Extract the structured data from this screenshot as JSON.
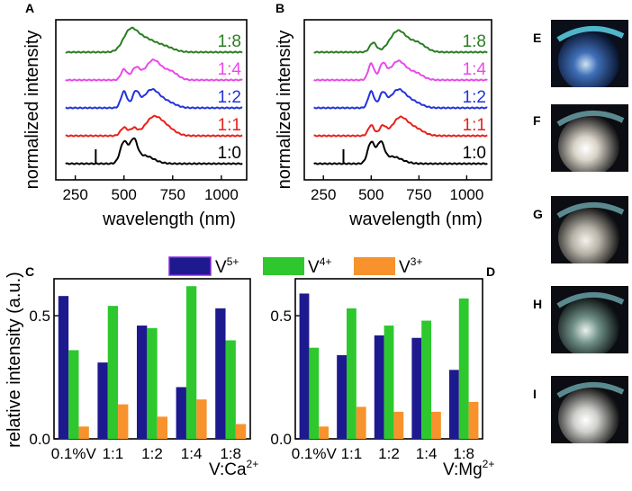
{
  "panels": {
    "a": "A",
    "b": "B",
    "c": "C",
    "d": "D",
    "e": "E",
    "f": "F",
    "g": "G",
    "h": "H",
    "i": "I"
  },
  "top_ylabel": "normalized intensity",
  "bottom_ylabel": "relative intensity (a.u.)",
  "colors": {
    "1:0": "#000000",
    "1:1": "#e8201c",
    "1:2": "#2333d9",
    "1:4": "#e84ae8",
    "1:8": "#2a7d22",
    "V5": "#1d1a8f",
    "V4": "#2ec82e",
    "V3": "#f7922c"
  },
  "legend": {
    "v5": {
      "base": "V",
      "sup": "5+"
    },
    "v4": {
      "base": "V",
      "sup": "4+"
    },
    "v3": {
      "base": "V",
      "sup": "3+"
    }
  },
  "xlabel_c": {
    "base": "V:Ca",
    "sup": "2+"
  },
  "xlabel_d": {
    "base": "V:Mg",
    "sup": "2+"
  },
  "chart_data": [
    {
      "id": "A",
      "type": "line",
      "xlabel": "wavelength (nm)",
      "ylabel": "normalized intensity",
      "xlim": [
        150,
        1130
      ],
      "xticks": [
        250,
        500,
        750,
        1000
      ],
      "series": [
        {
          "name": "1:0",
          "offset": 0,
          "peaks": [
            [
              500,
              0.9,
              28
            ],
            [
              550,
              0.85,
              25
            ],
            [
              600,
              0.35,
              70
            ]
          ],
          "spike": 355
        },
        {
          "name": "1:1",
          "offset": 1,
          "peaks": [
            [
              500,
              0.35,
              25
            ],
            [
              550,
              0.3,
              25
            ],
            [
              650,
              0.75,
              60
            ],
            [
              720,
              0.3,
              60
            ]
          ],
          "spike": null
        },
        {
          "name": "1:2",
          "offset": 2,
          "peaks": [
            [
              500,
              0.7,
              22
            ],
            [
              560,
              0.65,
              25
            ],
            [
              640,
              0.75,
              55
            ],
            [
              720,
              0.25,
              60
            ]
          ],
          "spike": null
        },
        {
          "name": "1:4",
          "offset": 3,
          "peaks": [
            [
              500,
              0.45,
              22
            ],
            [
              560,
              0.5,
              30
            ],
            [
              650,
              0.85,
              55
            ],
            [
              740,
              0.35,
              50
            ]
          ],
          "spike": null
        },
        {
          "name": "1:8",
          "offset": 4,
          "peaks": [
            [
              530,
              0.8,
              50
            ],
            [
              600,
              0.55,
              70
            ],
            [
              700,
              0.25,
              70
            ]
          ],
          "spike": null
        }
      ]
    },
    {
      "id": "B",
      "type": "line",
      "xlabel": "wavelength (nm)",
      "ylabel": "normalized intensity",
      "xlim": [
        150,
        1130
      ],
      "xticks": [
        250,
        500,
        750,
        1000
      ],
      "series": [
        {
          "name": "1:0",
          "offset": 0,
          "peaks": [
            [
              500,
              0.9,
              26
            ],
            [
              550,
              0.8,
              25
            ],
            [
              610,
              0.3,
              70
            ]
          ],
          "spike": 355
        },
        {
          "name": "1:1",
          "offset": 1,
          "peaks": [
            [
              500,
              0.45,
              22
            ],
            [
              560,
              0.4,
              25
            ],
            [
              650,
              0.75,
              55
            ],
            [
              730,
              0.3,
              60
            ]
          ],
          "spike": null
        },
        {
          "name": "1:2",
          "offset": 2,
          "peaks": [
            [
              500,
              0.7,
              22
            ],
            [
              560,
              0.6,
              25
            ],
            [
              640,
              0.75,
              55
            ],
            [
              720,
              0.25,
              60
            ]
          ],
          "spike": null
        },
        {
          "name": "1:4",
          "offset": 3,
          "peaks": [
            [
              500,
              0.7,
              22
            ],
            [
              560,
              0.65,
              25
            ],
            [
              640,
              0.8,
              55
            ],
            [
              730,
              0.3,
              55
            ]
          ],
          "spike": null
        },
        {
          "name": "1:8",
          "offset": 4,
          "peaks": [
            [
              510,
              0.4,
              25
            ],
            [
              640,
              0.9,
              60
            ],
            [
              740,
              0.4,
              60
            ]
          ],
          "spike": null
        }
      ]
    },
    {
      "id": "C",
      "type": "bar",
      "xlabel": "V:Ca2+",
      "ylabel": "relative intensity (a.u.)",
      "ylim": [
        0,
        0.65
      ],
      "yticks": [
        0.0,
        0.5
      ],
      "ytick_labels": [
        "0.0",
        "0.5"
      ],
      "categories": [
        "0.1%V",
        "1:1",
        "1:2",
        "1:4",
        "1:8"
      ],
      "series": [
        {
          "name": "V5+",
          "values": [
            0.58,
            0.31,
            0.46,
            0.21,
            0.53
          ]
        },
        {
          "name": "V4+",
          "values": [
            0.36,
            0.54,
            0.45,
            0.62,
            0.4
          ]
        },
        {
          "name": "V3+",
          "values": [
            0.05,
            0.14,
            0.09,
            0.16,
            0.06
          ]
        }
      ]
    },
    {
      "id": "D",
      "type": "bar",
      "xlabel": "V:Mg2+",
      "ylabel": "relative intensity (a.u.)",
      "ylim": [
        0,
        0.65
      ],
      "yticks": [
        0.0,
        0.5
      ],
      "ytick_labels": [
        "0.0",
        "0.5"
      ],
      "categories": [
        "0.1%V",
        "1:1",
        "1:2",
        "1:4",
        "1:8"
      ],
      "series": [
        {
          "name": "V5+",
          "values": [
            0.59,
            0.34,
            0.42,
            0.41,
            0.28
          ]
        },
        {
          "name": "V4+",
          "values": [
            0.37,
            0.53,
            0.46,
            0.48,
            0.57
          ]
        },
        {
          "name": "V3+",
          "values": [
            0.05,
            0.13,
            0.11,
            0.11,
            0.15
          ]
        }
      ]
    }
  ]
}
